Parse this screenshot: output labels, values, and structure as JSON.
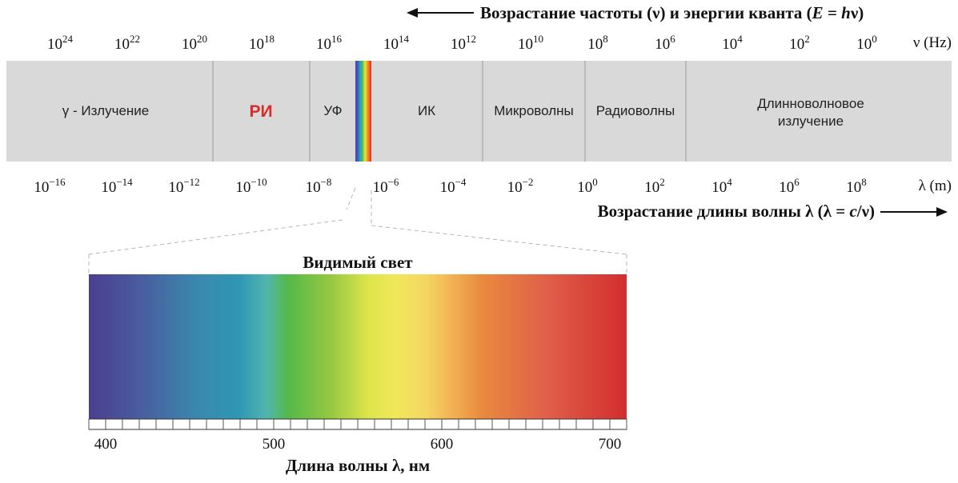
{
  "header": {
    "frequency_title_prefix": "Возрастание частоты (ν) и энергии кванта (",
    "frequency_title_E": "E",
    "frequency_title_eq": " = ",
    "frequency_title_h": "h",
    "frequency_title_suffix": "ν)",
    "frequency_unit": "ν (Hz)",
    "wavelength_title_prefix": "Возрастание длины волны λ (λ = ",
    "wavelength_title_c": "c",
    "wavelength_title_suffix": "/ν)",
    "wavelength_unit": "λ (m)"
  },
  "frequency_ticks": [
    {
      "base": "10",
      "exp": "24"
    },
    {
      "base": "10",
      "exp": "22"
    },
    {
      "base": "10",
      "exp": "20"
    },
    {
      "base": "10",
      "exp": "18"
    },
    {
      "base": "10",
      "exp": "16"
    },
    {
      "base": "10",
      "exp": "14"
    },
    {
      "base": "10",
      "exp": "12"
    },
    {
      "base": "10",
      "exp": "10"
    },
    {
      "base": "10",
      "exp": "8"
    },
    {
      "base": "10",
      "exp": "6"
    },
    {
      "base": "10",
      "exp": "4"
    },
    {
      "base": "10",
      "exp": "2"
    },
    {
      "base": "10",
      "exp": "0"
    }
  ],
  "wavelength_ticks": [
    {
      "base": "10",
      "exp": "−16"
    },
    {
      "base": "10",
      "exp": "−14"
    },
    {
      "base": "10",
      "exp": "−12"
    },
    {
      "base": "10",
      "exp": "−10"
    },
    {
      "base": "10",
      "exp": "−8"
    },
    {
      "base": "10",
      "exp": "−6"
    },
    {
      "base": "10",
      "exp": "−4"
    },
    {
      "base": "10",
      "exp": "−2"
    },
    {
      "base": "10",
      "exp": "0"
    },
    {
      "base": "10",
      "exp": "2"
    },
    {
      "base": "10",
      "exp": "4"
    },
    {
      "base": "10",
      "exp": "6"
    },
    {
      "base": "10",
      "exp": "8"
    }
  ],
  "bands": {
    "gamma": "γ - Излучение",
    "xray": "РИ",
    "uv": "УФ",
    "ir": "ИК",
    "microwave": "Микроволны",
    "radio": "Радиоволны",
    "longwave_line1": "Длинноволновое",
    "longwave_line2": "излучение"
  },
  "visible": {
    "title": "Видимый свет",
    "axis_label": "Длина волны λ, нм",
    "range_nm": [
      390,
      710
    ],
    "labels": [
      {
        "nm": 400,
        "text": "400"
      },
      {
        "nm": 500,
        "text": "500"
      },
      {
        "nm": 600,
        "text": "600"
      },
      {
        "nm": 700,
        "text": "700"
      }
    ],
    "minor_tick_step_nm": 10
  },
  "colors": {
    "band_fill": "#d9d9d9",
    "divider": "#9a9a9a",
    "xray_label": "#d62d2a",
    "arrow": "#111111"
  }
}
